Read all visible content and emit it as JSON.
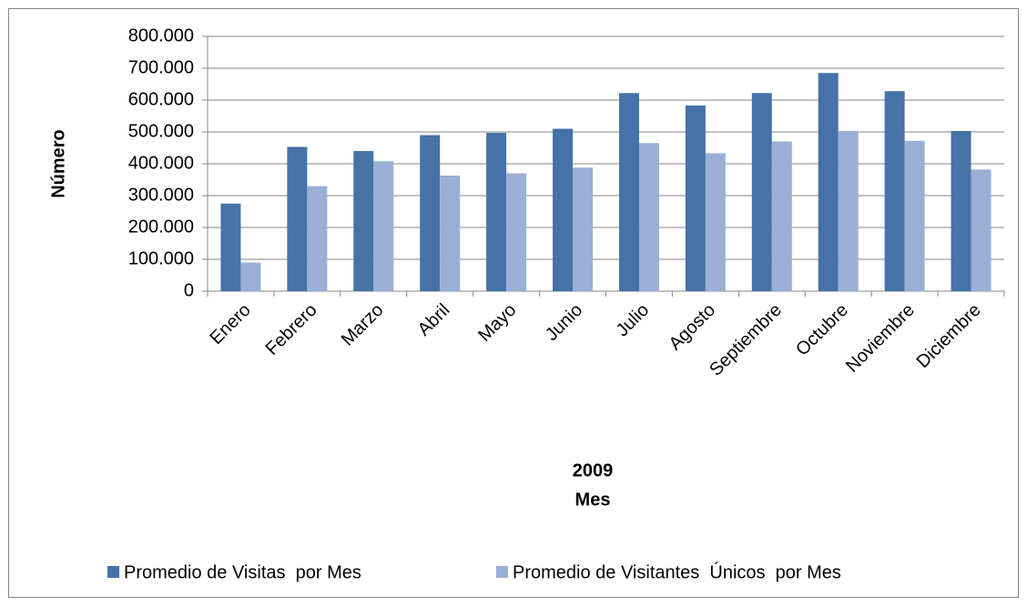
{
  "chart_data": {
    "type": "bar",
    "ylabel": "Número",
    "xlabel": [
      "2009",
      "Mes"
    ],
    "categories": [
      "Enero",
      "Febrero",
      "Marzo",
      "Abril",
      "Mayo",
      "Junio",
      "Julio",
      "Agosto",
      "Septiembre",
      "Octubre",
      "Noviembre",
      "Diciembre"
    ],
    "series": [
      {
        "name": "Promedio de Visitas  por Mes",
        "color": "#4572a7",
        "values": [
          275000,
          453000,
          440000,
          490000,
          497000,
          510000,
          622000,
          583000,
          622000,
          685000,
          628000,
          503000
        ]
      },
      {
        "name": "Promedio de Visitantes  Únicos  por Mes",
        "color": "#9bafd6",
        "values": [
          90000,
          330000,
          408000,
          363000,
          370000,
          388000,
          465000,
          433000,
          470000,
          503000,
          472000,
          382000
        ]
      }
    ],
    "ylim": [
      0,
      800000
    ],
    "yticks": [
      0,
      {
        "value": 100000,
        "label": "100.000"
      },
      {
        "value": 200000,
        "label": "200.000"
      },
      {
        "value": 300000,
        "label": "300.000"
      },
      {
        "value": 400000,
        "label": "400.000"
      },
      {
        "value": 500000,
        "label": "500.000"
      },
      {
        "value": 600000,
        "label": "600.000"
      },
      {
        "value": 700000,
        "label": "700.000"
      },
      {
        "value": 800000,
        "label": "800.000"
      }
    ],
    "grid": true,
    "legend": "bottom"
  }
}
